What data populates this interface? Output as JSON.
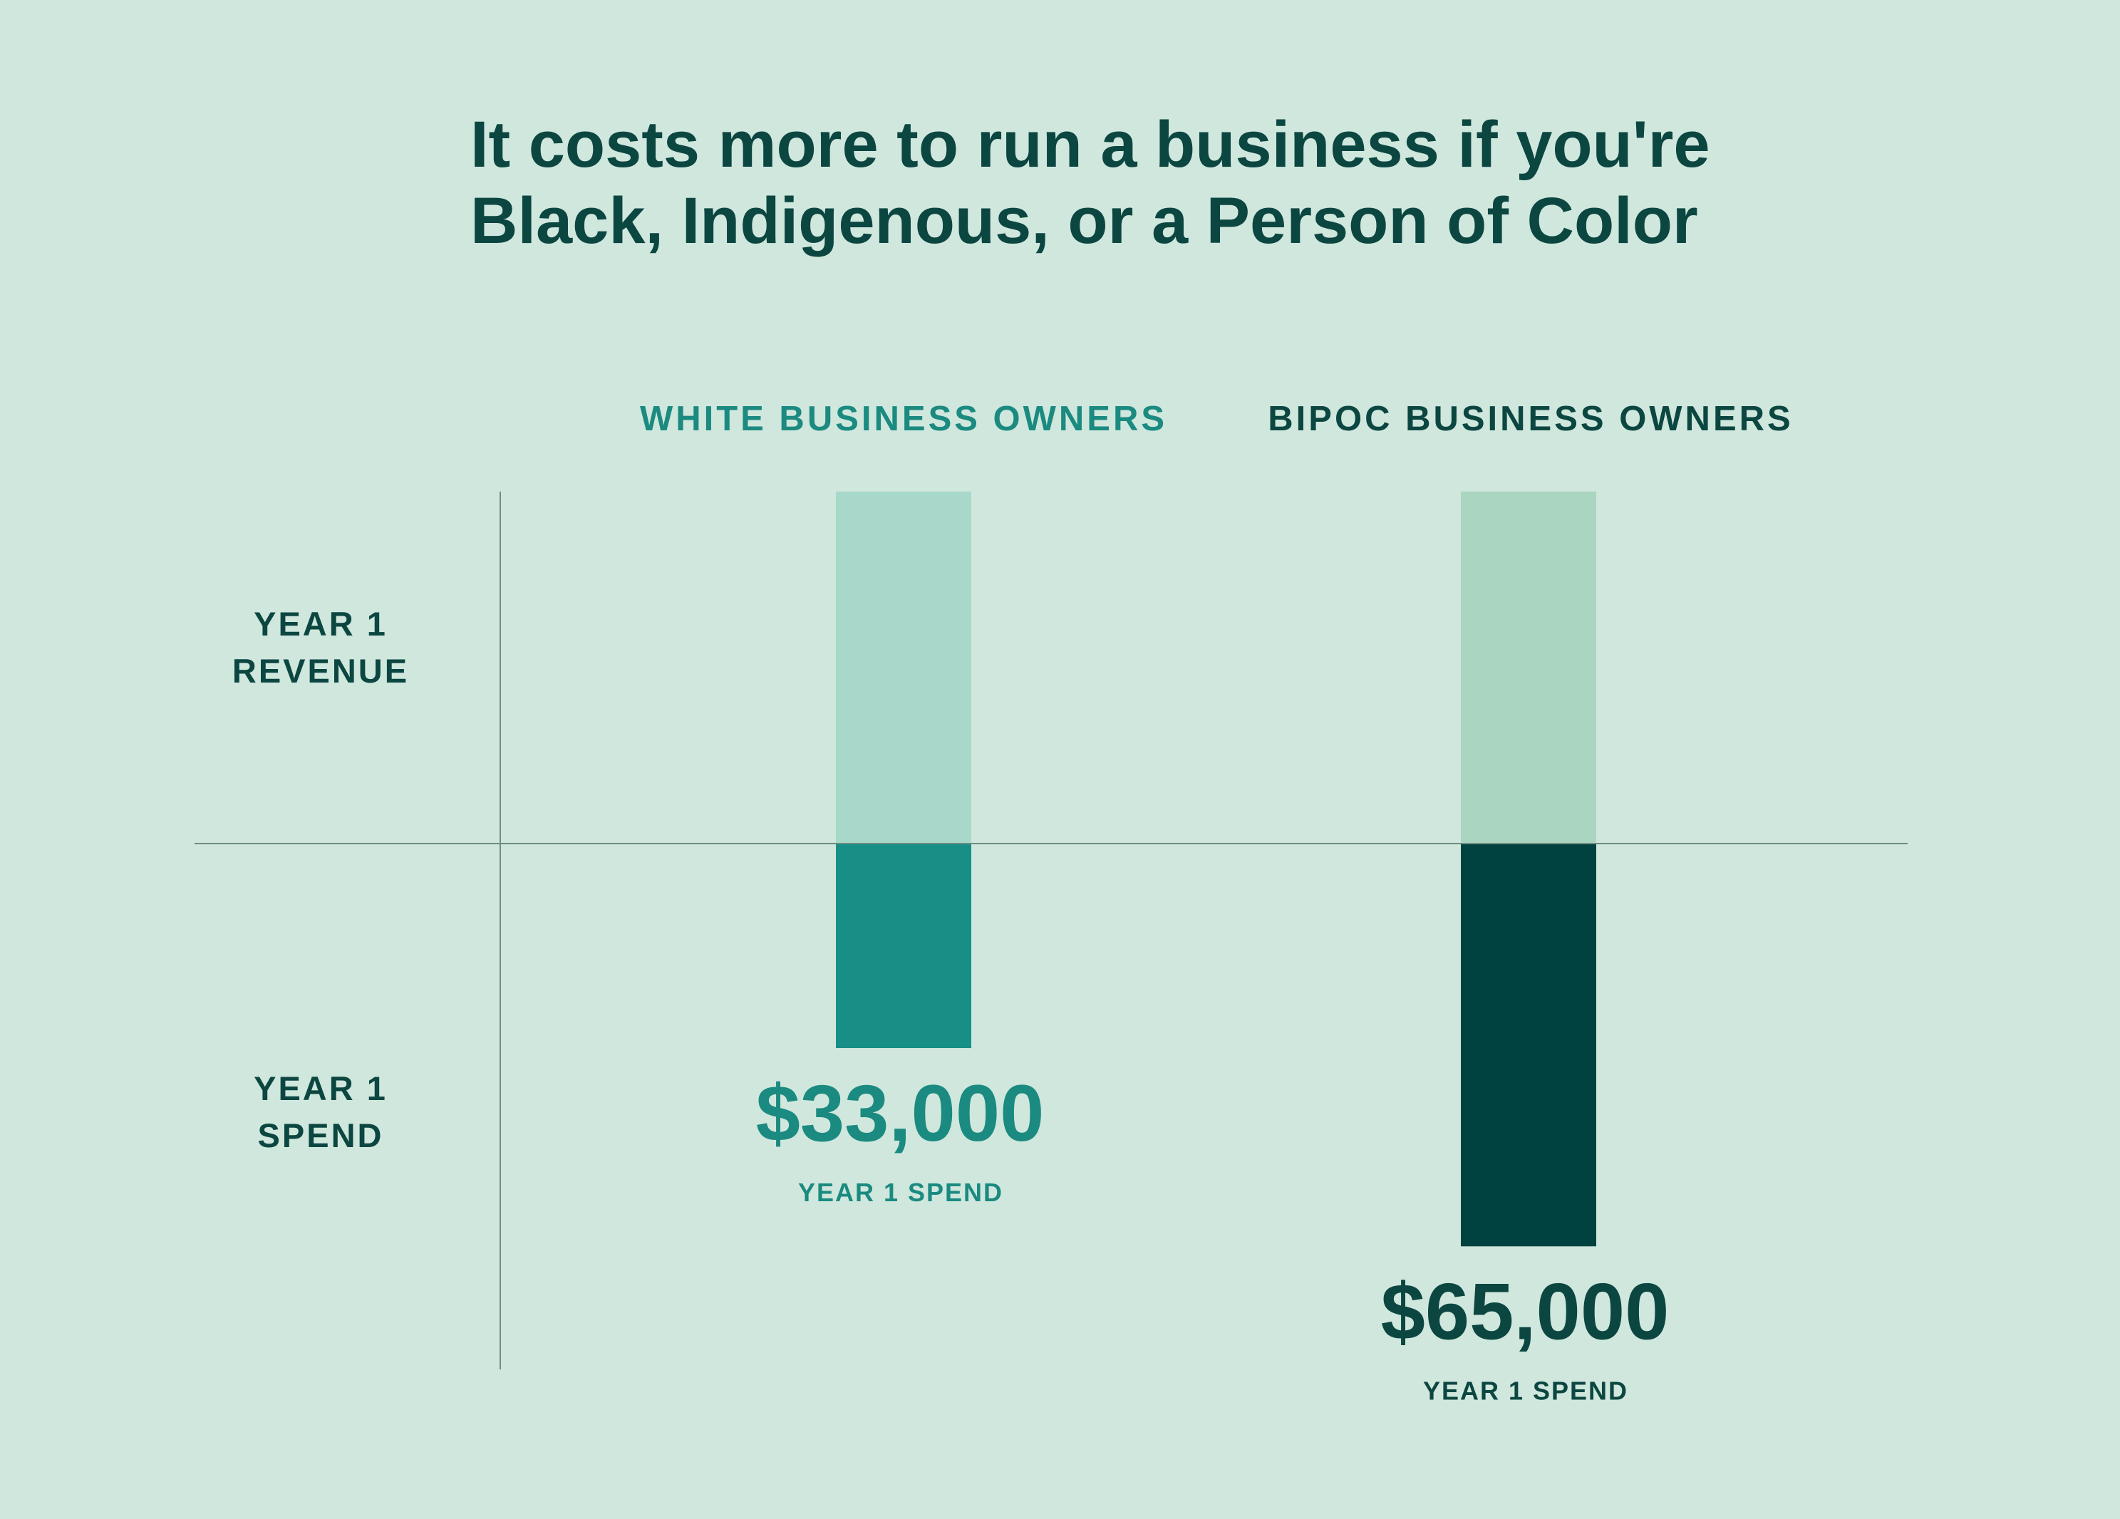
{
  "chart_data": {
    "type": "bar",
    "title_lines": [
      "It costs more to run a business if you're",
      "Black, Indigenous, or a Person of Color"
    ],
    "groups": [
      {
        "name": "WHITE BUSINESS OWNERS",
        "spend": 33000,
        "spend_label": "$33,000",
        "spend_caption": "YEAR 1 SPEND",
        "revenue_color": "#a8d8c9",
        "spend_color": "#178f86",
        "label_color": "#1b8a80"
      },
      {
        "name": "BIPOC BUSINESS OWNERS",
        "spend": 65000,
        "spend_label": "$65,000",
        "spend_caption": "YEAR 1 SPEND",
        "revenue_color": "#aad5c1",
        "spend_color": "#004240",
        "label_color": "#0c4641"
      }
    ],
    "row_labels": {
      "revenue": [
        "YEAR 1",
        "REVENUE"
      ],
      "spend": [
        "YEAR 1",
        "SPEND"
      ]
    },
    "revenue_values_shown": false,
    "axis_color": "#6e8d83",
    "background_color": "#d0e7dd"
  }
}
